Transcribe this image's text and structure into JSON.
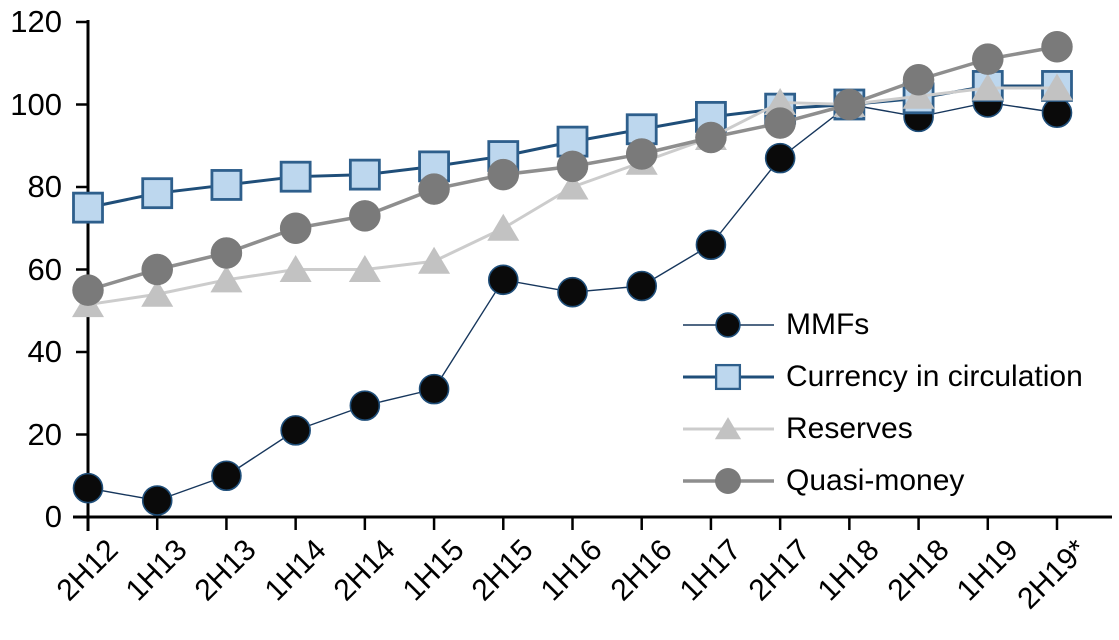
{
  "chart_data": {
    "type": "line",
    "title": "",
    "categories": [
      "2H12",
      "1H13",
      "2H13",
      "1H14",
      "2H14",
      "1H15",
      "2H15",
      "1H16",
      "2H16",
      "1H17",
      "2H17",
      "1H18",
      "2H18",
      "1H19",
      "2H19*"
    ],
    "series": [
      {
        "name": "MMFs",
        "marker": "circle",
        "line_color": "#16365C",
        "line_width": 1.4,
        "marker_fill": "#0a0a0a",
        "marker_stroke": "#1F4E79",
        "values": [
          7,
          4,
          10,
          21,
          27,
          31,
          57.5,
          54.5,
          56,
          66,
          87,
          100,
          97,
          100.5,
          98
        ]
      },
      {
        "name": "Currency in circulation",
        "marker": "square",
        "line_color": "#1F4E79",
        "line_width": 3,
        "marker_fill": "#BDD7EE",
        "marker_stroke": "#2E5F8C",
        "values": [
          75,
          78.5,
          80.5,
          82.5,
          83,
          85,
          87.5,
          91,
          94,
          97,
          99,
          100,
          101.5,
          104.5,
          104.5
        ]
      },
      {
        "name": "Reserves",
        "marker": "triangle",
        "line_color": "#CCCCCC",
        "line_width": 3,
        "marker_fill": "#C2C2C2",
        "marker_stroke": "#C2C2C2",
        "values": [
          51.5,
          54,
          57.5,
          60,
          60,
          62,
          70,
          80,
          86,
          92,
          100.5,
          100,
          102,
          104,
          104
        ]
      },
      {
        "name": "Quasi-money",
        "marker": "circle",
        "line_color": "#8E8E8E",
        "line_width": 3.5,
        "marker_fill": "#7A7A7A",
        "marker_stroke": "#7A7A7A",
        "values": [
          55,
          60,
          64,
          70,
          73,
          79.5,
          83,
          85,
          88,
          92,
          95.5,
          100,
          106,
          111,
          114
        ]
      }
    ],
    "xlabel": "",
    "ylabel": "",
    "ylim": [
      0,
      120
    ],
    "yticks": [
      0,
      20,
      40,
      60,
      80,
      100,
      120
    ],
    "grid": false,
    "legend_position": "inside-right",
    "axis_color": "#000000",
    "background_color": "#FFFFFF"
  }
}
